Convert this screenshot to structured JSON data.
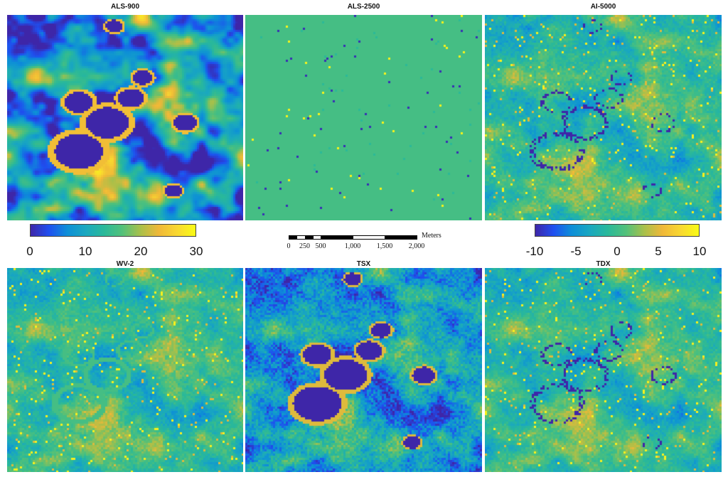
{
  "panels": [
    {
      "id": "als900",
      "title": "ALS-900"
    },
    {
      "id": "als2500",
      "title": "ALS-2500"
    },
    {
      "id": "ai5000",
      "title": "AI-5000"
    },
    {
      "id": "wv2",
      "title": "WV-2"
    },
    {
      "id": "tsx",
      "title": "TSX"
    },
    {
      "id": "tdx",
      "title": "TDX"
    }
  ],
  "colormap": [
    "#3e26a8",
    "#1f4ff0",
    "#0d8fd8",
    "#1aa8c0",
    "#2ab99a",
    "#52c17a",
    "#a9c04a",
    "#f0b838",
    "#f9d830",
    "#f9fb15"
  ],
  "legend_left": {
    "min": 0,
    "max": 30,
    "ticks": [
      {
        "value": 0,
        "label": "0"
      },
      {
        "value": 10,
        "label": "10"
      },
      {
        "value": 20,
        "label": "20"
      },
      {
        "value": 30,
        "label": "30"
      }
    ]
  },
  "legend_right": {
    "min": -10,
    "max": 10,
    "ticks": [
      {
        "value": -10,
        "label": "-10"
      },
      {
        "value": -5,
        "label": "-5"
      },
      {
        "value": 0,
        "label": "0"
      },
      {
        "value": 5,
        "label": "5"
      },
      {
        "value": 10,
        "label": "10"
      }
    ]
  },
  "scale_bar": {
    "unit": "Meters",
    "max": 2000,
    "ticks": [
      {
        "value": 0,
        "label": "0"
      },
      {
        "value": 250,
        "label": "250"
      },
      {
        "value": 500,
        "label": "500"
      },
      {
        "value": 1000,
        "label": "1,000"
      },
      {
        "value": 1500,
        "label": "1,500"
      },
      {
        "value": 2000,
        "label": "2,000"
      }
    ]
  }
}
